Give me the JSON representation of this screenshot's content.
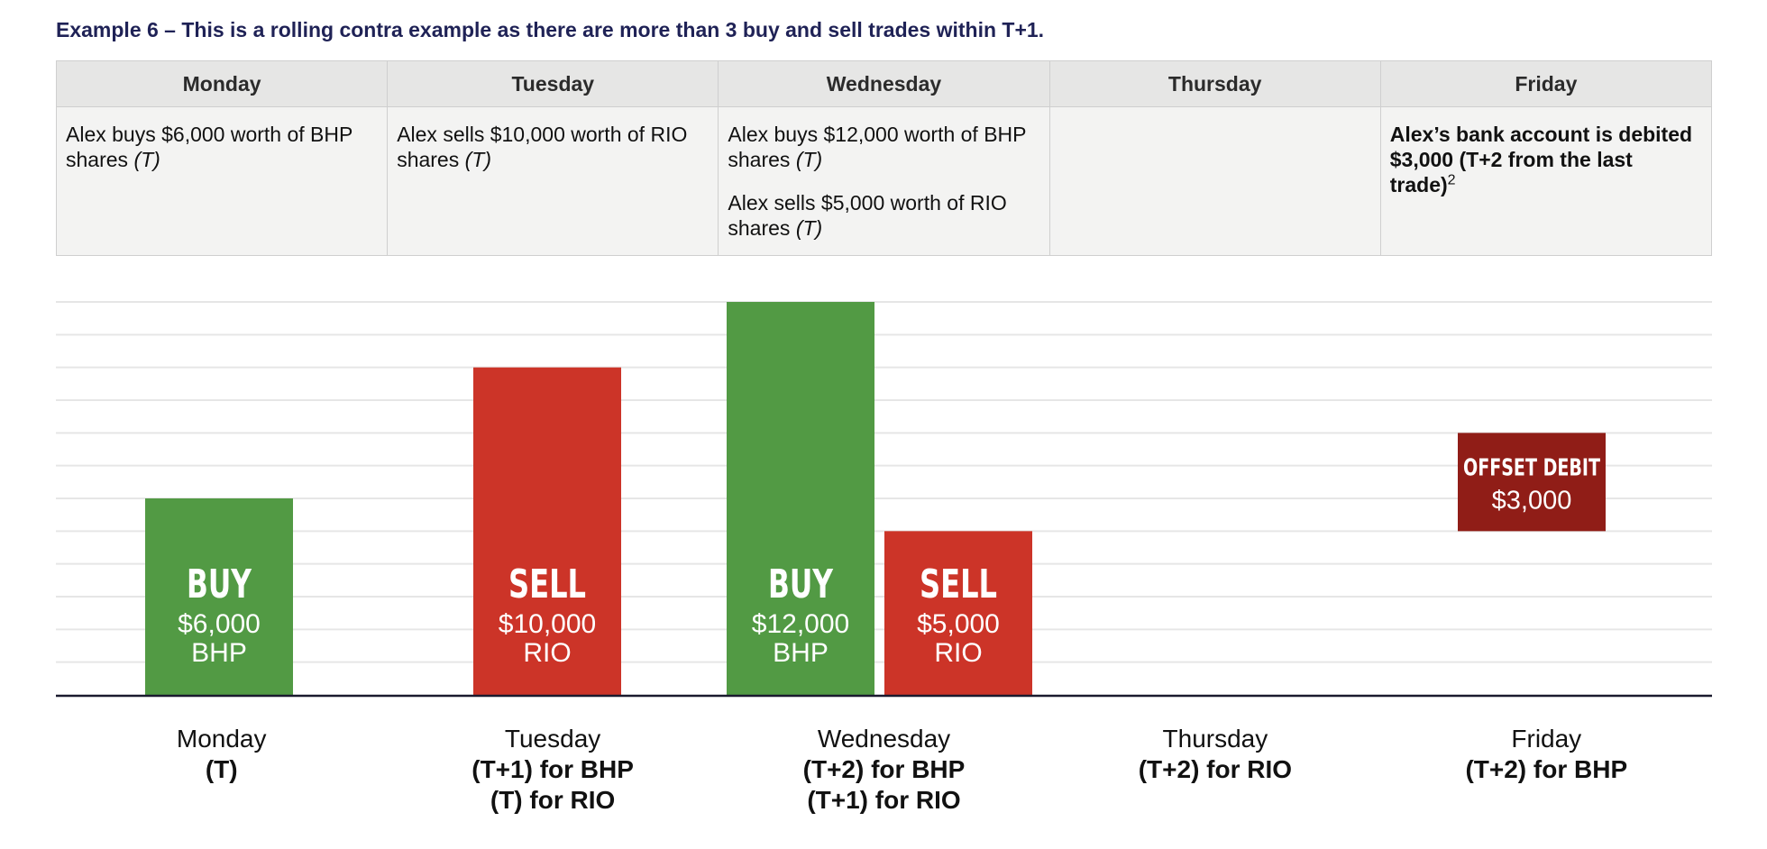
{
  "title": "Example 6 – This is a rolling contra example as there are more than 3 buy and sell trades within T+1.",
  "colors": {
    "buy": "#529a44",
    "sell": "#cc3428",
    "offset": "#901d17",
    "gridline": "#e6e6e6",
    "axis": "#1a1a2e"
  },
  "schedule": {
    "days": [
      "Monday",
      "Tuesday",
      "Wednesday",
      "Thursday",
      "Friday"
    ],
    "monday": {
      "text": "Alex buys $6,000 worth of BHP shares",
      "tag": "(T)"
    },
    "tuesday": {
      "text": "Alex sells $10,000 worth of RIO shares",
      "tag": "(T)"
    },
    "wednesday": [
      {
        "text": "Alex buys $12,000 worth of BHP shares",
        "tag": "(T)"
      },
      {
        "text": "Alex sells $5,000 worth of RIO shares",
        "tag": "(T)"
      }
    ],
    "thursday": "",
    "friday": {
      "text": "Alex’s bank account is debited $3,000 (T+2 from the last trade)",
      "sup": "2"
    }
  },
  "chart_data": {
    "type": "bar",
    "ylim": [
      0,
      12000
    ],
    "grid": true,
    "bars": [
      {
        "day": "Monday",
        "action": "BUY",
        "amount": "$6,000",
        "stock": "BHP",
        "value": 6000,
        "kind": "buy"
      },
      {
        "day": "Tuesday",
        "action": "SELL",
        "amount": "$10,000",
        "stock": "RIO",
        "value": 10000,
        "kind": "sell"
      },
      {
        "day": "Wednesday",
        "action": "BUY",
        "amount": "$12,000",
        "stock": "BHP",
        "value": 12000,
        "kind": "buy"
      },
      {
        "day": "Wednesday",
        "action": "SELL",
        "amount": "$5,000",
        "stock": "RIO",
        "value": 5000,
        "kind": "sell"
      },
      {
        "day": "Friday",
        "action": "OFFSET DEBIT",
        "amount": "$3,000",
        "stock": "",
        "value": 3000,
        "range": [
          5000,
          8000
        ],
        "kind": "offset"
      }
    ],
    "categories": [
      {
        "day": "Monday",
        "lines": [
          "(T)"
        ]
      },
      {
        "day": "Tuesday",
        "lines": [
          "(T+1) for BHP",
          "(T) for RIO"
        ]
      },
      {
        "day": "Wednesday",
        "lines": [
          "(T+2) for BHP",
          "(T+1) for RIO"
        ]
      },
      {
        "day": "Thursday",
        "lines": [
          "(T+2) for RIO"
        ]
      },
      {
        "day": "Friday",
        "lines": [
          "(T+2) for BHP"
        ]
      }
    ]
  }
}
